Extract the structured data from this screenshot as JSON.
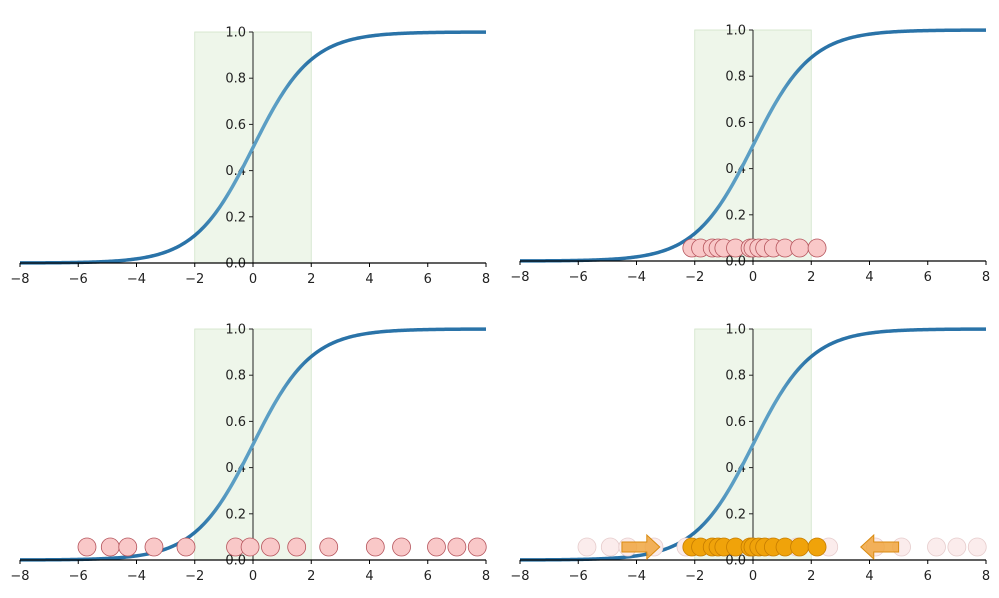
{
  "figure": {
    "description": "Four panels showing a logistic sigmoid with a shaded central region and sample points",
    "colors": {
      "curve": "#2a73a8",
      "curve_light": "#5b9ec4",
      "shade": "#eef6ea",
      "shade_edge": "#cfe3c8",
      "point_fill": "#f9c8c8",
      "point_edge": "#b5545c",
      "point_faded_fill": "#fbecec",
      "point_faded_edge": "#e6cccc",
      "highlight_fill": "#f0a30a",
      "highlight_edge": "#c67c00",
      "arrow_fill": "#f0a640",
      "axis": "#000000"
    }
  },
  "chart_data": [
    {
      "panel": "top-left",
      "type": "line",
      "title": "",
      "xlabel": "",
      "ylabel": "",
      "xlim": [
        -8,
        8
      ],
      "ylim": [
        0,
        1
      ],
      "xticks": [
        "−8",
        "−6",
        "−4",
        "−2",
        "0",
        "2",
        "4",
        "6",
        "8"
      ],
      "yticks": [
        "0.0",
        "0.2",
        "0.4",
        "0.6",
        "0.8",
        "1.0"
      ],
      "function": "sigmoid(x) = 1/(1+exp(-x))",
      "shaded_region": [
        -2,
        2
      ],
      "points": []
    },
    {
      "panel": "top-right",
      "type": "scatter",
      "xlim": [
        -8,
        8
      ],
      "ylim": [
        0,
        1
      ],
      "xticks": [
        "−8",
        "−6",
        "−4",
        "−2",
        "0",
        "2",
        "4",
        "6",
        "8"
      ],
      "yticks": [
        "0.0",
        "0.2",
        "0.4",
        "0.6",
        "0.8",
        "1.0"
      ],
      "function": "sigmoid",
      "shaded_region": [
        -2,
        2
      ],
      "points_y": 0.05,
      "points": [
        -2.1,
        -1.8,
        -1.4,
        -1.2,
        -1.0,
        -0.6,
        -0.1,
        0.0,
        0.2,
        0.4,
        0.7,
        1.1,
        1.6,
        2.2
      ]
    },
    {
      "panel": "bottom-left",
      "type": "scatter",
      "xlim": [
        -8,
        8
      ],
      "ylim": [
        0,
        1
      ],
      "xticks": [
        "−8",
        "−6",
        "−4",
        "−2",
        "0",
        "2",
        "4",
        "6",
        "8"
      ],
      "yticks": [
        "0.0",
        "0.2",
        "0.4",
        "0.6",
        "0.8",
        "1.0"
      ],
      "function": "sigmoid",
      "shaded_region": [
        -2,
        2
      ],
      "points_y": 0.05,
      "points": [
        -5.7,
        -4.9,
        -4.3,
        -3.4,
        -2.3,
        -0.6,
        -0.1,
        0.6,
        1.5,
        2.6,
        4.2,
        5.1,
        6.3,
        7.0,
        7.7
      ]
    },
    {
      "panel": "bottom-right",
      "type": "scatter",
      "xlim": [
        -8,
        8
      ],
      "ylim": [
        0,
        1
      ],
      "xticks": [
        "−8",
        "−6",
        "−4",
        "−2",
        "0",
        "2",
        "4",
        "6",
        "8"
      ],
      "yticks": [
        "0.0",
        "0.2",
        "0.4",
        "0.6",
        "0.8",
        "1.0"
      ],
      "function": "sigmoid",
      "shaded_region": [
        -2,
        2
      ],
      "points_y": 0.05,
      "faded_points": [
        -5.7,
        -4.9,
        -4.3,
        -3.4,
        -2.3,
        -0.6,
        -0.1,
        0.6,
        1.5,
        2.6,
        4.2,
        5.1,
        6.3,
        7.0,
        7.7
      ],
      "highlighted_points": [
        -2.1,
        -1.8,
        -1.4,
        -1.2,
        -1.0,
        -0.6,
        -0.1,
        0.0,
        0.2,
        0.4,
        0.7,
        1.1,
        1.6,
        2.2
      ],
      "annotations": [
        {
          "type": "arrow",
          "direction": "right",
          "from_x": -4.5,
          "to_x": -3.2
        },
        {
          "type": "arrow",
          "direction": "left",
          "from_x": 5.0,
          "to_x": 3.7
        }
      ]
    }
  ]
}
